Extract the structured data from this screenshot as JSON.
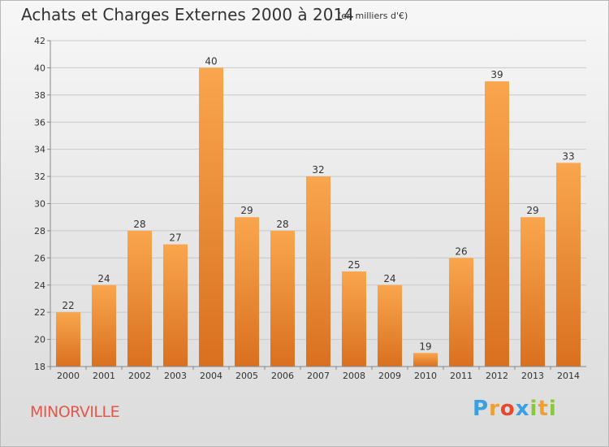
{
  "header": {
    "title": "Achats et Charges Externes 2000 à 2014",
    "subtitle": "(en milliers d'€)"
  },
  "footer": {
    "town": "MINORVILLE",
    "logo_letters": [
      "P",
      "r",
      "o",
      "x",
      "i",
      "t",
      "i"
    ],
    "logo_colors": [
      "#3aa0e0",
      "#f0a030",
      "#e84830",
      "#3aa0e0",
      "#8cc63f",
      "#f0a030",
      "#8cc63f"
    ]
  },
  "colors": {
    "bar_top": "#f9a64e",
    "bar_bottom": "#d97020",
    "grid": "#c8c8c8",
    "axis_text": "#333333"
  },
  "chart_data": {
    "type": "bar",
    "title": "Achats et Charges Externes 2000 à 2014",
    "subtitle": "(en milliers d'€)",
    "categories": [
      "2000",
      "2001",
      "2002",
      "2003",
      "2004",
      "2005",
      "2006",
      "2007",
      "2008",
      "2009",
      "2010",
      "2011",
      "2012",
      "2013",
      "2014"
    ],
    "values": [
      22,
      24,
      28,
      27,
      40,
      29,
      28,
      32,
      25,
      24,
      19,
      26,
      39,
      29,
      33
    ],
    "y_ticks": [
      18,
      20,
      22,
      24,
      26,
      28,
      30,
      32,
      34,
      36,
      38,
      40,
      42
    ],
    "ylim": [
      18,
      42
    ],
    "grid": true,
    "xlabel": "",
    "ylabel": ""
  }
}
